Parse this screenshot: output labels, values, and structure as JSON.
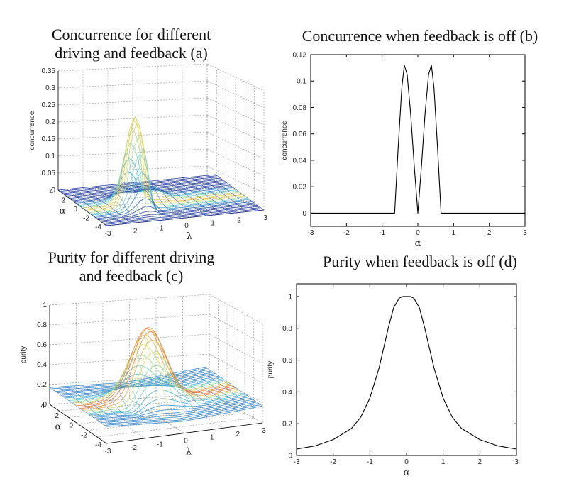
{
  "panels": {
    "a": {
      "title_line1": "Concurrence for different",
      "title_line2": "driving and feedback (a)"
    },
    "b": {
      "title": "Concurrence when feedback is off (b)"
    },
    "c": {
      "title_line1": "Purity for different driving",
      "title_line2": "and feedback (c)"
    },
    "d": {
      "title": "Purity when feedback is off (d)"
    }
  },
  "chart_data": [
    {
      "id": "a",
      "type": "surface3d",
      "title": "Concurrence for different driving and feedback (a)",
      "xlabel": "λ",
      "ylabel": "α",
      "zlabel": "concurrence",
      "xticks": [
        "-3",
        "-2",
        "-1",
        "0",
        "1",
        "2",
        "3"
      ],
      "yticks": [
        "4",
        "2",
        "0",
        "-2",
        "-4"
      ],
      "zticks": [
        "0",
        "0.05",
        "0.1",
        "0.15",
        "0.2",
        "0.25",
        "0.3",
        "0.35"
      ],
      "xlim": [
        -3,
        3
      ],
      "ylim": [
        -4,
        4
      ],
      "zlim": [
        0,
        0.35
      ],
      "peak_value": 0.26,
      "peak_location": {
        "lambda": -1.0,
        "alpha": -0.5
      }
    },
    {
      "id": "b",
      "type": "line",
      "title": "Concurrence when feedback is off (b)",
      "xlabel": "α",
      "ylabel": "concurrence",
      "xlim": [
        -3,
        3
      ],
      "ylim": [
        -0.01,
        0.12
      ],
      "xticks": [
        "-3",
        "-2",
        "-1",
        "0",
        "1",
        "2",
        "3"
      ],
      "yticks": [
        "0",
        "0.02",
        "0.04",
        "0.06",
        "0.08",
        "0.1",
        "0.12"
      ],
      "x": [
        -3,
        -0.65,
        -0.55,
        -0.45,
        -0.38,
        -0.3,
        -0.2,
        -0.1,
        0,
        0.1,
        0.2,
        0.3,
        0.38,
        0.45,
        0.55,
        0.65,
        3
      ],
      "y": [
        0,
        0,
        0.05,
        0.095,
        0.112,
        0.105,
        0.075,
        0.035,
        0,
        0.035,
        0.075,
        0.105,
        0.112,
        0.095,
        0.05,
        0,
        0
      ]
    },
    {
      "id": "c",
      "type": "surface3d",
      "title": "Purity for different driving and feedback (c)",
      "xlabel": "λ",
      "ylabel": "α",
      "zlabel": "purity",
      "xticks": [
        "-3",
        "-2",
        "-1",
        "0",
        "1",
        "2",
        "3"
      ],
      "yticks": [
        "4",
        "2",
        "0",
        "-2",
        "-4"
      ],
      "zticks": [
        "0",
        "0.2",
        "0.4",
        "0.6",
        "0.8",
        "1"
      ],
      "xlim": [
        -3,
        3
      ],
      "ylim": [
        -4,
        4
      ],
      "zlim": [
        0,
        1
      ],
      "peak_value": 0.88
    },
    {
      "id": "d",
      "type": "line",
      "title": "Purity when feedback is off (d)",
      "xlabel": "α",
      "ylabel": "purity",
      "xlim": [
        -3,
        3
      ],
      "ylim": [
        0,
        1.08
      ],
      "xticks": [
        "-3",
        "-2",
        "-1",
        "0",
        "1",
        "2",
        "3"
      ],
      "yticks": [
        "0",
        "0.2",
        "0.4",
        "0.6",
        "0.8",
        "1"
      ],
      "x": [
        -3,
        -2.5,
        -2,
        -1.5,
        -1.25,
        -1,
        -0.75,
        -0.5,
        -0.35,
        -0.2,
        -0.1,
        0,
        0.1,
        0.2,
        0.35,
        0.5,
        0.75,
        1,
        1.25,
        1.5,
        2,
        2.5,
        3
      ],
      "y": [
        0.04,
        0.06,
        0.1,
        0.17,
        0.24,
        0.36,
        0.55,
        0.8,
        0.93,
        0.99,
        1.0,
        1.0,
        1.0,
        0.99,
        0.93,
        0.8,
        0.55,
        0.36,
        0.24,
        0.17,
        0.1,
        0.06,
        0.04
      ]
    }
  ]
}
